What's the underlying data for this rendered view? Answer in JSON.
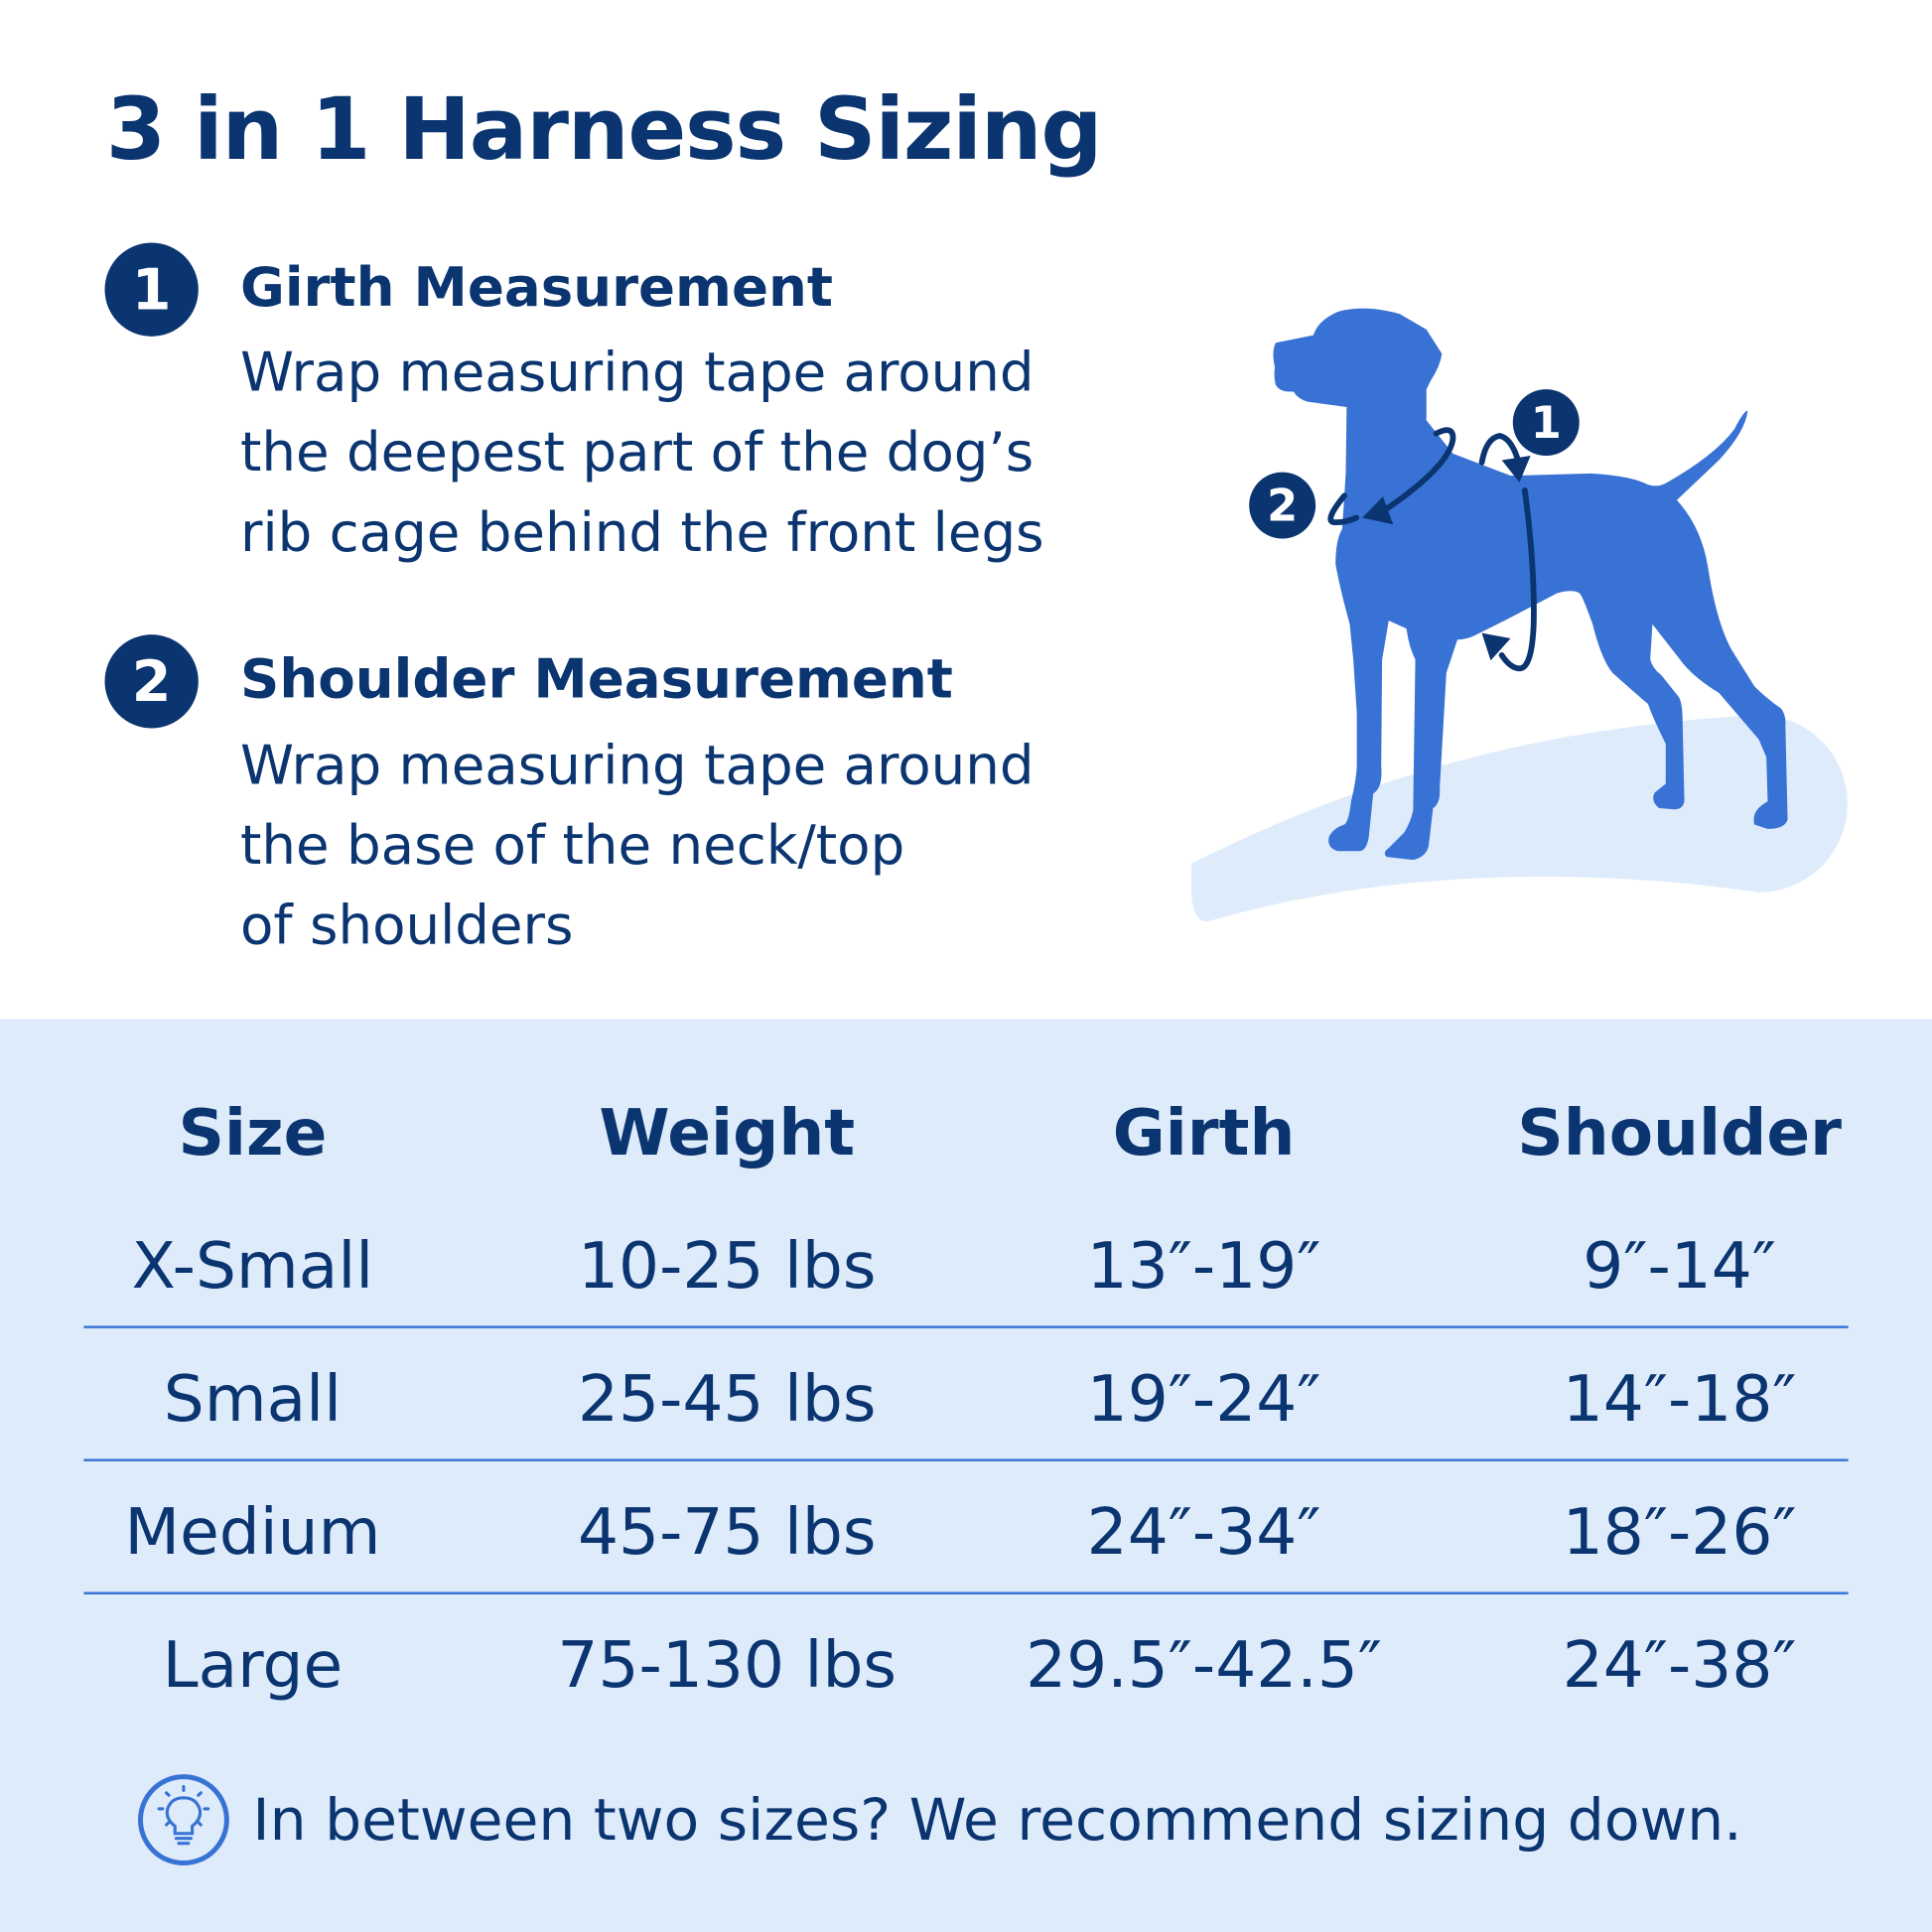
{
  "title": "3 in 1 Harness Sizing",
  "steps": [
    {
      "number": "1",
      "heading": "Girth Measurement",
      "lines": [
        "Wrap measuring tape around",
        "the deepest part of the dog’s",
        "rib cage behind the front legs"
      ]
    },
    {
      "number": "2",
      "heading": "Shoulder Measurement",
      "lines": [
        "Wrap measuring tape around",
        "the base of the neck/top",
        "of shoulders"
      ]
    }
  ],
  "illustration": {
    "icon": "dog-silhouette",
    "markers": [
      "1",
      "2"
    ],
    "dog_color": "#3872d4",
    "marker_color": "#0b3570"
  },
  "table": {
    "headers": [
      "Size",
      "Weight",
      "Girth",
      "Shoulder"
    ],
    "rows": [
      [
        "X-Small",
        "10-25 lbs",
        "13″-19″",
        "9″-14″"
      ],
      [
        "Small",
        "25-45 lbs",
        "19″-24″",
        "14″-18″"
      ],
      [
        "Medium",
        "45-75 lbs",
        "24″-34″",
        "18″-26″"
      ],
      [
        "Large",
        "75-130 lbs",
        "29.5″-42.5″",
        "24″-38″"
      ]
    ]
  },
  "tip": {
    "icon": "lightbulb-icon",
    "text": "In between two sizes? We recommend sizing down."
  },
  "colors": {
    "text": "#0b3570",
    "accent": "#3872d4",
    "panel": "#deebfb"
  }
}
